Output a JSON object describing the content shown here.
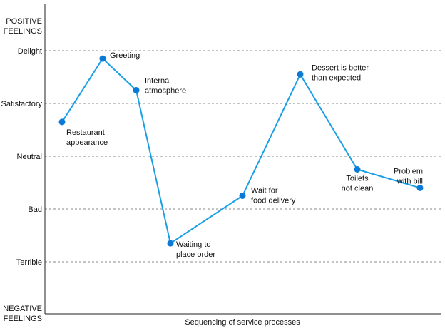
{
  "chart_data": {
    "type": "line",
    "top_label": [
      "POSITIVE",
      "FEELINGS"
    ],
    "bottom_label": [
      "NEGATIVE",
      "FEELINGS"
    ],
    "xlabel": "Sequencing of service processes",
    "ylevels": [
      "Terrible",
      "Bad",
      "Neutral",
      "Satisfactory",
      "Delight"
    ],
    "ylim": [
      -2.0,
      3.0
    ],
    "grid": true,
    "colors": {
      "series": "#1aa0e6",
      "marker": "#0a7ad6"
    },
    "series": [
      {
        "values": [
          {
            "step": 1,
            "y": 2.65,
            "label": [
              "Restaurant",
              "appearance"
            ]
          },
          {
            "step": 2,
            "y": 3.85,
            "label": [
              "Greeting"
            ]
          },
          {
            "step": 3,
            "y": 3.25,
            "label": [
              "Internal",
              "atmosphere"
            ]
          },
          {
            "step": 4,
            "y": 0.35,
            "label": [
              "Waiting to",
              "place order"
            ]
          },
          {
            "step": 5,
            "y": 1.25,
            "label": [
              "Wait for",
              "food delivery"
            ]
          },
          {
            "step": 6,
            "y": 3.55,
            "label": [
              "Dessert is better",
              "than expected"
            ]
          },
          {
            "step": 7,
            "y": 1.75,
            "label": [
              "Toilets",
              "not clean"
            ]
          },
          {
            "step": 8,
            "y": 1.4,
            "label": [
              "Problem",
              "with bill"
            ]
          }
        ]
      }
    ]
  }
}
